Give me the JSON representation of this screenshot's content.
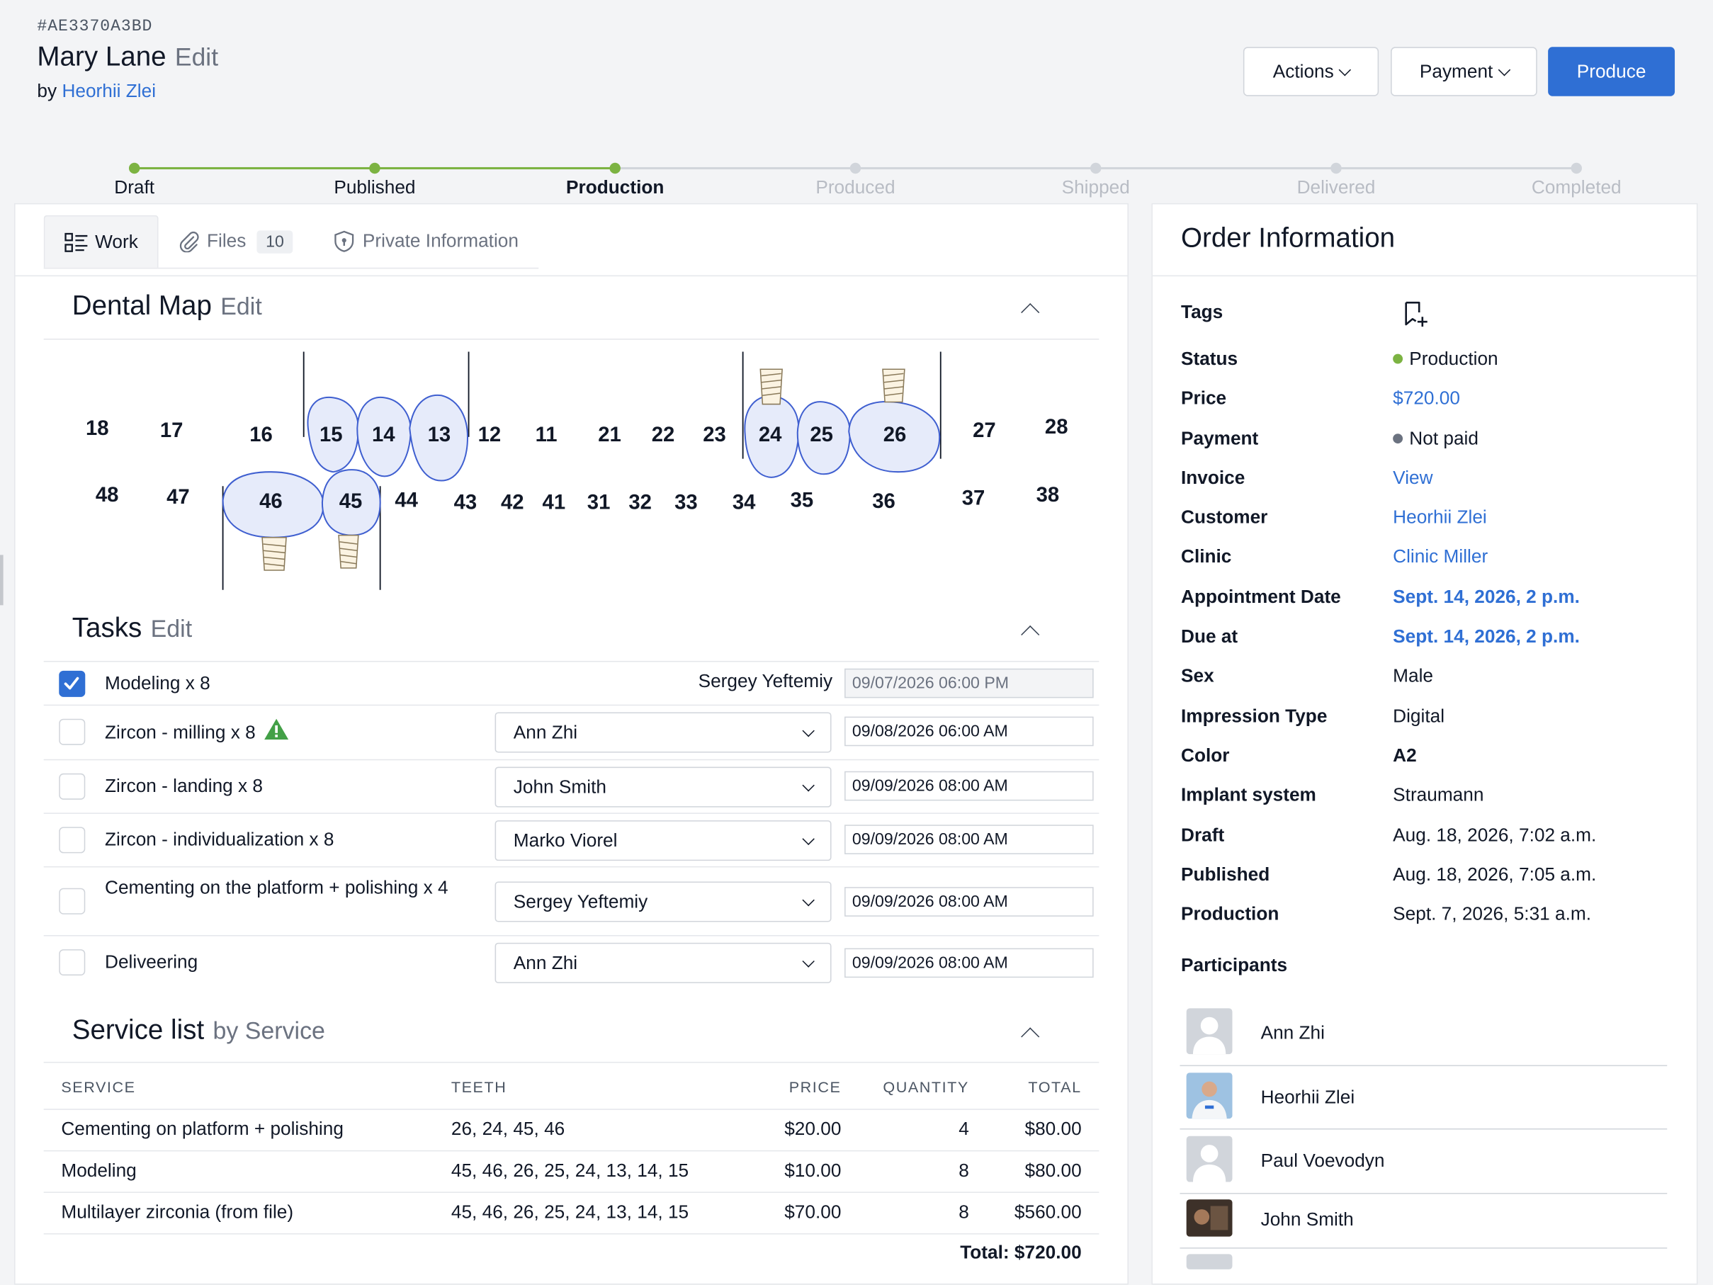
{
  "header": {
    "order_id": "#AE3370A3BD",
    "name": "Mary Lane",
    "edit_label": "Edit",
    "by_label": "by",
    "author": "Heorhii Zlei"
  },
  "toolbar": {
    "actions_label": "Actions",
    "payment_label": "Payment",
    "produce_label": "Produce"
  },
  "progress": {
    "steps": [
      "Draft",
      "Published",
      "Production",
      "Produced",
      "Shipped",
      "Delivered",
      "Completed"
    ],
    "current_index": 2
  },
  "tabs": [
    {
      "label": "Work"
    },
    {
      "label": "Files",
      "count": "10"
    },
    {
      "label": "Private Information"
    }
  ],
  "dental_map": {
    "title": "Dental Map",
    "edit_label": "Edit",
    "upper": [
      "18",
      "17",
      "16",
      "15",
      "14",
      "13",
      "12",
      "11",
      "21",
      "22",
      "23",
      "24",
      "25",
      "26",
      "27",
      "28"
    ],
    "lower": [
      "48",
      "47",
      "46",
      "45",
      "44",
      "43",
      "42",
      "41",
      "31",
      "32",
      "33",
      "34",
      "35",
      "36",
      "37",
      "38"
    ]
  },
  "tasks": {
    "title": "Tasks",
    "edit_label": "Edit",
    "rows": [
      {
        "name": "Modeling x 8",
        "assignee": "Sergey Yeftemiy",
        "date": "09/07/2026 06:00 PM",
        "done": true
      },
      {
        "name": "Zircon - milling x 8",
        "assignee": "Ann Zhi",
        "date": "09/08/2026 06:00 AM",
        "done": false,
        "warning": true
      },
      {
        "name": "Zircon - landing x 8",
        "assignee": "John Smith",
        "date": "09/09/2026 08:00 AM",
        "done": false
      },
      {
        "name": "Zircon - individualization x 8",
        "assignee": "Marko Viorel",
        "date": "09/09/2026 08:00 AM",
        "done": false
      },
      {
        "name": "Cementing on the platform + polishing x 4",
        "assignee": "Sergey Yeftemiy",
        "date": "09/09/2026 08:00 AM",
        "done": false
      },
      {
        "name": "Deliveering",
        "assignee": "Ann Zhi",
        "date": "09/09/2026 08:00 AM",
        "done": false
      }
    ]
  },
  "service_list": {
    "title": "Service list",
    "subtitle": "by Service",
    "columns": [
      "SERVICE",
      "TEETH",
      "PRICE",
      "QUANTITY",
      "TOTAL"
    ],
    "rows": [
      {
        "service": "Cementing on platform + polishing",
        "teeth": "26, 24, 45, 46",
        "price": "$20.00",
        "quantity": "4",
        "total": "$80.00"
      },
      {
        "service": "Modeling",
        "teeth": "45, 46, 26, 25, 24, 13, 14, 15",
        "price": "$10.00",
        "quantity": "8",
        "total": "$80.00"
      },
      {
        "service": "Multilayer zirconia (from file)",
        "teeth": "45, 46, 26, 25, 24, 13, 14, 15",
        "price": "$70.00",
        "quantity": "8",
        "total": "$560.00"
      }
    ],
    "total_label": "Total: $720.00"
  },
  "order_info": {
    "title": "Order Information",
    "tags_label": "Tags",
    "fields": [
      {
        "label": "Status",
        "value": "Production"
      },
      {
        "label": "Price",
        "value": "$720.00"
      },
      {
        "label": "Payment",
        "value": "Not paid"
      },
      {
        "label": "Invoice",
        "value": "View"
      },
      {
        "label": "Customer",
        "value": "Heorhii Zlei"
      },
      {
        "label": "Clinic",
        "value": "Clinic Miller"
      },
      {
        "label": "Appointment Date",
        "value": "Sept. 14, 2026, 2 p.m."
      },
      {
        "label": "Due at",
        "value": "Sept. 14, 2026, 2 p.m."
      },
      {
        "label": "Sex",
        "value": "Male"
      },
      {
        "label": "Impression Type",
        "value": "Digital"
      },
      {
        "label": "Color",
        "value": "A2"
      },
      {
        "label": "Implant system",
        "value": "Straumann"
      },
      {
        "label": "Draft",
        "value": "Aug. 18, 2026, 7:02 a.m."
      },
      {
        "label": "Published",
        "value": "Aug. 18, 2026, 7:05 a.m."
      },
      {
        "label": "Production",
        "value": "Sept. 7, 2026, 5:31 a.m."
      }
    ],
    "participants_label": "Participants",
    "participants": [
      "Ann Zhi",
      "Heorhii Zlei",
      "Paul Voevodyn",
      "John Smith"
    ]
  },
  "colors": {
    "accent": "#2f6fd4",
    "progress_done": "#7cb342",
    "progress_todo": "#d1d5db",
    "tooth_fill": "#e6ebfa",
    "tooth_stroke": "#3f5fd0"
  }
}
